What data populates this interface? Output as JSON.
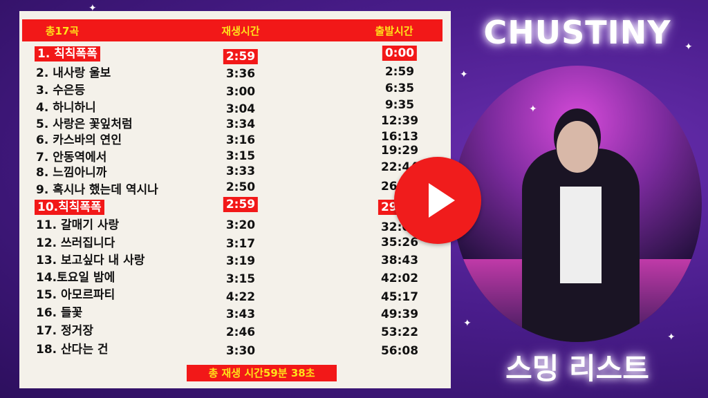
{
  "header": {
    "count": "총17곡",
    "duration": "재생시간",
    "start": "출발시간"
  },
  "tracks": [
    {
      "title": "1. 칙칙폭폭",
      "duration": "2:59",
      "start": "0:00",
      "highlight": true
    },
    {
      "title": "2. 내사랑 울보",
      "duration": "3:36",
      "start": "2:59"
    },
    {
      "title": "3. 수은등",
      "duration": "3:00",
      "start": "6:35"
    },
    {
      "title": "4. 하니하니",
      "duration": "3:04",
      "start": "9:35"
    },
    {
      "title": "5. 사랑은 꽃잎처럼",
      "duration": "3:34",
      "start": "12:39"
    },
    {
      "title": "6. 카스바의 연인",
      "duration": "3:16",
      "start": "16:13"
    },
    {
      "title": "7. 안동역에서",
      "duration": "3:15",
      "start": "19:29"
    },
    {
      "title": "8. 느낌아니까",
      "duration": "3:33",
      "start": "22:44"
    },
    {
      "title": "9. 혹시나 했는데 역시나",
      "duration": "2:50",
      "start": "26:17"
    },
    {
      "title": "10.칙칙폭폭",
      "duration": "2:59",
      "start": "29:07",
      "highlight": true
    },
    {
      "title": "11. 갈매기 사랑",
      "duration": "3:20",
      "start": "32:06"
    },
    {
      "title": "12. 쓰러집니다",
      "duration": "3:17",
      "start": "35:26"
    },
    {
      "title": "13. 보고싶다 내 사랑",
      "duration": "3:19",
      "start": "38:43"
    },
    {
      "title": "14.토요일 밤에",
      "duration": "3:15",
      "start": "42:02"
    },
    {
      "title": "15. 아모르파티",
      "duration": "4:22",
      "start": "45:17"
    },
    {
      "title": "16. 들꽃",
      "duration": "3:43",
      "start": "49:39"
    },
    {
      "title": "17. 정거장",
      "duration": "2:46",
      "start": "53:22"
    },
    {
      "title": "18. 산다는 건",
      "duration": "3:30",
      "start": "56:08"
    }
  ],
  "total": "총 재생 시간59분 38초",
  "brand": "CHUSTINY",
  "subtitle": "스밍 리스트",
  "colors": {
    "accent": "#f21818",
    "header_text": "#ffe21a",
    "panel": "#f4f1ea",
    "background": "#4a1d8c"
  },
  "icons": {
    "play": "play-icon"
  }
}
